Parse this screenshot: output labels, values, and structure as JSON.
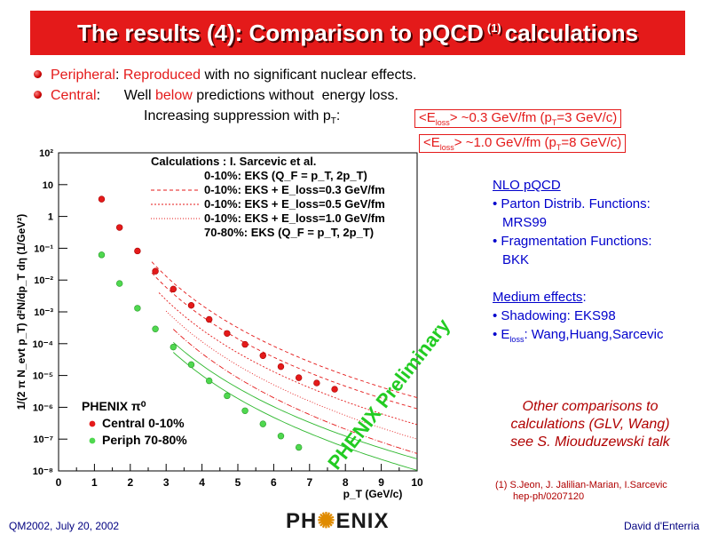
{
  "title": {
    "main": "The results (4): Comparison to pQCD",
    "sup": "(1)",
    "tail": "calculations"
  },
  "bullets": [
    {
      "red": "Peripheral",
      "p1": ": ",
      "red2": "Reproduced",
      "rest": " with no significant nuclear effects."
    },
    {
      "red": "Central",
      "p1": ":      Well ",
      "red2": "below",
      "rest": " predictions without  energy loss."
    }
  ],
  "bullet2_line2": {
    "text": "Increasing suppression with p",
    "sub": "T",
    "colon": ":"
  },
  "eloss_boxes": [
    {
      "a": "<E",
      "sub": "loss",
      "b": "> ~0.3 GeV/fm (p",
      "sub2": "T",
      "c": "=3 GeV/c)"
    },
    {
      "a": "<E",
      "sub": "loss",
      "b": "> ~1.0 GeV/fm (p",
      "sub2": "T",
      "c": "=8 GeV/c)"
    }
  ],
  "side_panel": {
    "nlo_title": "NLO pQCD",
    "nlo_items": [
      "Parton Distrib. Functions:",
      "MRS99",
      "Fragmentation Functions:",
      "BKK"
    ],
    "medium_title": "Medium effects",
    "medium_items": [
      "Shadowing: EKS98",
      "E",
      "loss",
      ": Wang,Huang,Sarcevic"
    ]
  },
  "other": [
    "Other comparisons to",
    "calculations (GLV, Wang)",
    "see S. Miouduzewski talk"
  ],
  "reference": [
    "(1) S.Jeon, J. Jalilian-Marian, I.Sarcevic",
    "hep-ph/0207120"
  ],
  "footer": {
    "left": "QM2002, July 20, 2002",
    "right": "David d'Enterria",
    "logo_a": "PH",
    "logo_b": "ENIX"
  },
  "colors": {
    "accent": "#e41a1a",
    "central": "#e41a1a",
    "periph": "#4fd84f",
    "text_blue": "#0000cc"
  },
  "chart_data": {
    "type": "scatter",
    "xlabel": "p_T (GeV/c)",
    "ylabel": "1/(2 π N_evt p_T) d²N/dp_T dη (1/GeV²)",
    "xlim": [
      0,
      10
    ],
    "ylim": [
      1e-08,
      100
    ],
    "y_scale": "log",
    "x_ticks": [
      "0",
      "1",
      "2",
      "3",
      "4",
      "5",
      "6",
      "7",
      "8",
      "9",
      "10"
    ],
    "y_ticks": [
      "10²",
      "10",
      "1",
      "10⁻¹",
      "10⁻²",
      "10⁻³",
      "10⁻⁴",
      "10⁻⁵",
      "10⁻⁶",
      "10⁻⁷",
      "10⁻⁸"
    ],
    "watermark": "PHENIX Preliminary",
    "legend_title": "PHENIX π⁰",
    "calc_header": "Calculations : I. Sarcevic et al.",
    "calc_legend": [
      "0-10%: EKS (Q_F = p_T, 2p_T)",
      "0-10%: EKS + E_loss=0.3 GeV/fm",
      "0-10%: EKS + E_loss=0.5 GeV/fm",
      "0-10%: EKS + E_loss=1.0 GeV/fm",
      "70-80%: EKS (Q_F = p_T, 2p_T)"
    ],
    "series": [
      {
        "name": "Central 0-10%",
        "x": [
          1.2,
          1.7,
          2.2,
          2.7,
          3.2,
          3.7,
          4.2,
          4.7,
          5.2,
          5.7,
          6.2,
          6.7,
          7.2,
          7.7
        ],
        "y": [
          3.5,
          0.45,
          0.082,
          0.019,
          0.0052,
          0.0016,
          0.00058,
          0.00021,
          9.5e-05,
          4.2e-05,
          1.9e-05,
          8.5e-06,
          5.8e-06,
          3.7e-06
        ]
      },
      {
        "name": "Periph 70-80%",
        "x": [
          1.2,
          1.7,
          2.2,
          2.7,
          3.2,
          3.7,
          4.2,
          4.7,
          5.2,
          5.7,
          6.2,
          6.7
        ],
        "y": [
          0.062,
          0.0078,
          0.0013,
          0.00029,
          7.8e-05,
          2.2e-05,
          6.8e-06,
          2.3e-06,
          7.8e-07,
          3e-07,
          1.25e-07,
          5.5e-08
        ]
      }
    ]
  }
}
